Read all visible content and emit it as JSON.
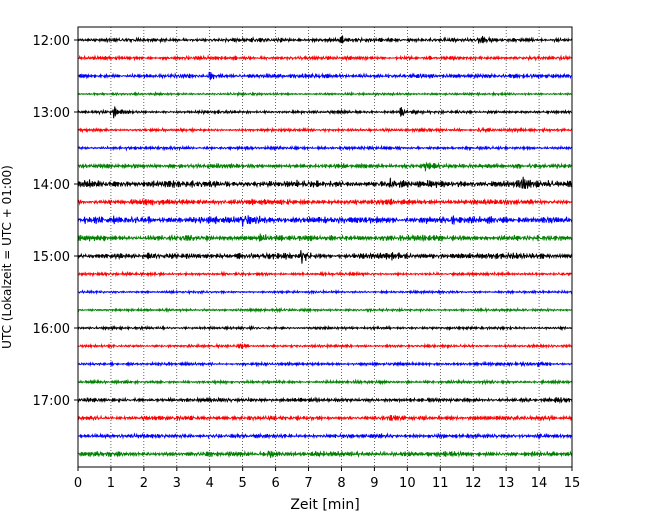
{
  "chart_data": {
    "type": "line",
    "chart_kind": "helicorder seismogram",
    "title": "",
    "xlabel": "Zeit  [min]",
    "ylabel": "UTC (Lokalzeit = UTC + 01:00)",
    "xlim": [
      0,
      15
    ],
    "x_ticks": [
      "0",
      "1",
      "2",
      "3",
      "4",
      "5",
      "6",
      "7",
      "8",
      "9",
      "10",
      "11",
      "12",
      "13",
      "14",
      "15"
    ],
    "y_tick_labels": [
      "12:00",
      "13:00",
      "14:00",
      "15:00",
      "16:00",
      "17:00"
    ],
    "grid": "vertical dotted lines at each minute",
    "legend": "none",
    "trace_interval_minutes": 15,
    "color_cycle": [
      "#000000",
      "#ff0000",
      "#0000ff",
      "#008000"
    ],
    "traces": [
      {
        "start": "12:00",
        "amplitude": 2.0,
        "events": [
          {
            "t": 8.0,
            "a": 3
          },
          {
            "t": 12.2,
            "a": 3
          }
        ]
      },
      {
        "start": "12:15",
        "amplitude": 1.8,
        "events": []
      },
      {
        "start": "12:30",
        "amplitude": 2.2,
        "events": [
          {
            "t": 4.0,
            "a": 3
          }
        ]
      },
      {
        "start": "12:45",
        "amplitude": 1.2,
        "events": []
      },
      {
        "start": "13:00",
        "amplitude": 1.5,
        "events": [
          {
            "t": 1.1,
            "a": 5
          },
          {
            "t": 9.8,
            "a": 8
          }
        ]
      },
      {
        "start": "13:15",
        "amplitude": 1.5,
        "events": [
          {
            "t": 12.2,
            "a": 4
          }
        ]
      },
      {
        "start": "13:30",
        "amplitude": 1.6,
        "events": []
      },
      {
        "start": "13:45",
        "amplitude": 2.2,
        "events": [
          {
            "t": 10.5,
            "a": 4
          },
          {
            "t": 13.3,
            "a": 4
          }
        ]
      },
      {
        "start": "14:00",
        "amplitude": 3.5,
        "events": [
          {
            "t": 0.2,
            "a": 4
          },
          {
            "t": 9.5,
            "a": 5
          },
          {
            "t": 13.5,
            "a": 4
          }
        ]
      },
      {
        "start": "14:15",
        "amplitude": 2.8,
        "events": []
      },
      {
        "start": "14:30",
        "amplitude": 3.8,
        "events": [
          {
            "t": 5.0,
            "a": 4
          }
        ]
      },
      {
        "start": "14:45",
        "amplitude": 3.0,
        "events": [
          {
            "t": 5.5,
            "a": 4
          }
        ]
      },
      {
        "start": "15:00",
        "amplitude": 3.0,
        "events": [
          {
            "t": 6.8,
            "a": 6
          },
          {
            "t": 9.5,
            "a": 4
          }
        ]
      },
      {
        "start": "15:15",
        "amplitude": 1.5,
        "events": []
      },
      {
        "start": "15:30",
        "amplitude": 1.2,
        "events": []
      },
      {
        "start": "15:45",
        "amplitude": 1.3,
        "events": []
      },
      {
        "start": "16:00",
        "amplitude": 1.3,
        "events": []
      },
      {
        "start": "16:15",
        "amplitude": 1.3,
        "events": [
          {
            "t": 4.9,
            "a": 4
          }
        ]
      },
      {
        "start": "16:30",
        "amplitude": 1.5,
        "events": [
          {
            "t": 14.0,
            "a": 3
          }
        ]
      },
      {
        "start": "16:45",
        "amplitude": 1.5,
        "events": []
      },
      {
        "start": "17:00",
        "amplitude": 2.0,
        "events": [
          {
            "t": 14.5,
            "a": 3
          }
        ]
      },
      {
        "start": "17:15",
        "amplitude": 2.2,
        "events": [
          {
            "t": 9.5,
            "a": 3
          }
        ]
      },
      {
        "start": "17:30",
        "amplitude": 2.2,
        "events": [
          {
            "t": 14.0,
            "a": 3
          }
        ]
      },
      {
        "start": "17:45",
        "amplitude": 2.5,
        "events": [
          {
            "t": 5.8,
            "a": 3
          }
        ]
      }
    ]
  }
}
